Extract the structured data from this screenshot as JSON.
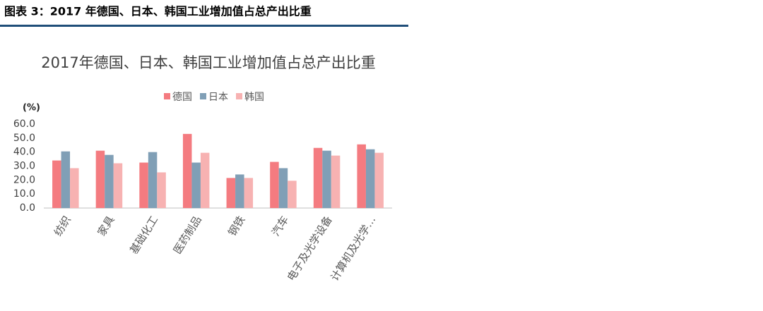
{
  "header": "图表 3：2017 年德国、日本、韩国工业增加值占总产出比重",
  "chart_data": {
    "type": "bar",
    "title": "2017年德国、日本、韩国工业增加值占总产出比重",
    "unit": "(%)",
    "categories": [
      "纺织",
      "家具",
      "基础化工",
      "医药制品",
      "钢铁",
      "汽车",
      "电子及光学设备",
      "计算机及光学…"
    ],
    "series": [
      {
        "name": "德国",
        "color": "#f47b80",
        "values": [
          34,
          41,
          32.5,
          53,
          21.5,
          33,
          43,
          45.5
        ]
      },
      {
        "name": "日本",
        "color": "#809fb6",
        "values": [
          40.5,
          38,
          40,
          32.5,
          24,
          28.5,
          41,
          42
        ]
      },
      {
        "name": "韩国",
        "color": "#f7b2b2",
        "values": [
          28.5,
          32,
          25.5,
          39.5,
          21.5,
          19.5,
          37.5,
          39.5
        ]
      }
    ],
    "ylim": [
      0,
      60
    ],
    "yticks": [
      {
        "value": 0,
        "label": "0.0"
      },
      {
        "value": 10,
        "label": "10.0"
      },
      {
        "value": 20,
        "label": "20.0"
      },
      {
        "value": 30,
        "label": "30.0"
      },
      {
        "value": 40,
        "label": "40.0"
      },
      {
        "value": 50,
        "label": "50.0"
      },
      {
        "value": 60,
        "label": "60.0"
      }
    ],
    "grid": false,
    "legend": "top"
  }
}
